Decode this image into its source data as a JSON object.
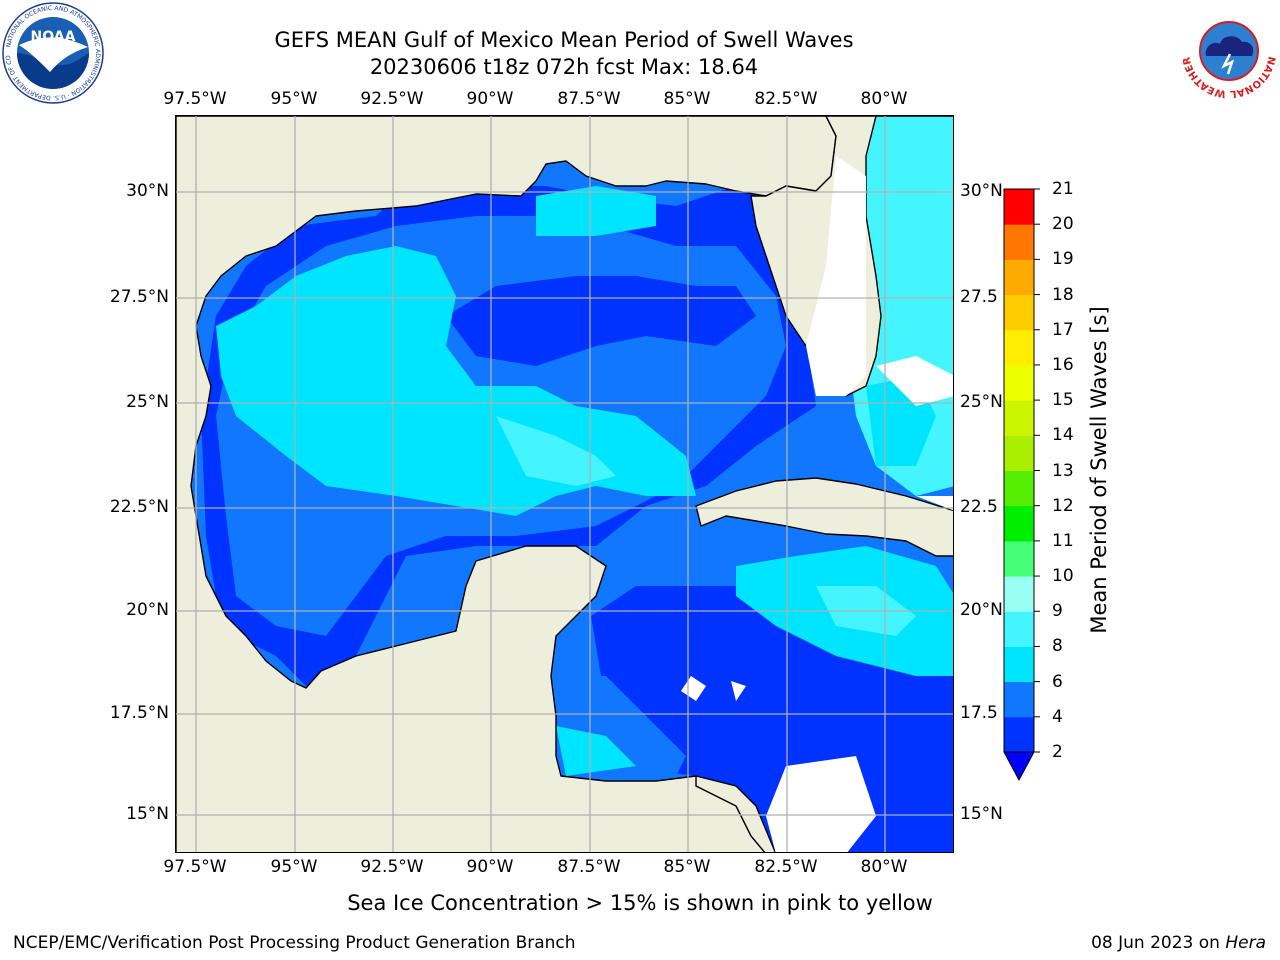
{
  "header": {
    "title_line1": "GEFS MEAN Gulf of Mexico Mean Period of Swell Waves",
    "title_line2": "20230606 t18z 072h fcst   Max: 18.64"
  },
  "map": {
    "lon_ticks": [
      "97.5°W",
      "95°W",
      "92.5°W",
      "90°W",
      "87.5°W",
      "85°W",
      "82.5°W",
      "80°W"
    ],
    "lat_ticks_left": [
      "30°N",
      "27.5°N",
      "25°N",
      "22.5°N",
      "20°N",
      "17.5°N",
      "15°N"
    ],
    "lat_ticks_right": [
      "30°N",
      "27.5",
      "25°N",
      "22.5",
      "20°N",
      "17.5",
      "15°N"
    ],
    "land_color": "#eeeedd",
    "coast_color": "#000000",
    "grid_color": "#b0b0b0"
  },
  "colorbar": {
    "title": "Mean Period of Swell Waves [s]",
    "levels": [
      "2",
      "4",
      "6",
      "8",
      "9",
      "10",
      "11",
      "12",
      "13",
      "14",
      "15",
      "16",
      "17",
      "18",
      "19",
      "20",
      "21"
    ],
    "colors": [
      "#0033ff",
      "#1177ff",
      "#00e5ff",
      "#44f4ff",
      "#99fff5",
      "#44ff77",
      "#00ee00",
      "#55ee00",
      "#aaee00",
      "#ccf500",
      "#eeff00",
      "#ffee00",
      "#ffcc00",
      "#ffaa00",
      "#ff7700",
      "#ff4400",
      "#ff0000"
    ],
    "extend_color": "#0000ff"
  },
  "footer": {
    "note": "Sea Ice Concentration > 15% is shown in pink to yellow",
    "credit": "NCEP/EMC/Verification Post Processing Product Generation Branch",
    "date": "08 Jun 2023 on",
    "machine": "Hera"
  },
  "logos": {
    "noaa": "NOAA",
    "nws_ring": "NATIONAL WEATHER SERVICE",
    "noaa_ring": "NATIONAL OCEANIC AND ATMOSPHERIC ADMINISTRATION · U.S. DEPARTMENT OF COMMERCE"
  }
}
